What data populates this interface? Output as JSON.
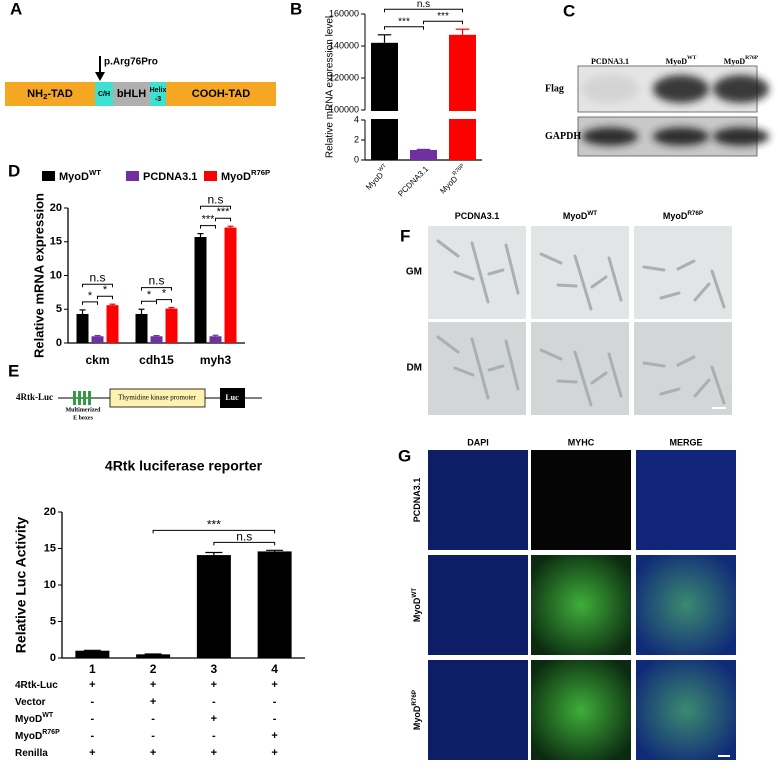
{
  "panel_labels": [
    "A",
    "B",
    "C",
    "D",
    "E",
    "F",
    "G"
  ],
  "diagram_a": {
    "mutation": "p.Arg76Pro",
    "domains": [
      {
        "text": "NH",
        "sub": "2",
        "after": "-TAD"
      },
      {
        "text": "C/H"
      },
      {
        "text": "bHLH"
      },
      {
        "text": "Helix",
        "line2": "-3"
      },
      {
        "text": "COOH-TAD"
      }
    ]
  },
  "blot_c": {
    "columns": [
      {
        "text": "PCDNA3.1"
      },
      {
        "text": "MyoD",
        "sup": "WT"
      },
      {
        "text": "MyoD",
        "sup": "R76P"
      }
    ],
    "rows": [
      "Flag",
      "GAPDH"
    ]
  },
  "construct_e": {
    "name": "4Rtk-Luc",
    "ebox_label": [
      "Multimerized",
      "E boxes"
    ],
    "promoter": "Thymidine kinase promoter",
    "reporter": "Luc"
  },
  "micrographs_f": {
    "columns": [
      {
        "text": "PCDNA3.1"
      },
      {
        "text": "MyoD",
        "sup": "WT"
      },
      {
        "text": "MyoD",
        "sup": "R76P"
      }
    ],
    "rows": [
      "GM",
      "DM"
    ]
  },
  "immuno_g": {
    "columns": [
      "DAPI",
      "MYHC",
      "MERGE"
    ],
    "rows": [
      {
        "text": "PCDNA3.1"
      },
      {
        "text": "MyoD",
        "sup": "WT"
      },
      {
        "text": "MyoD",
        "sup": "R76P"
      }
    ]
  },
  "chart_data": [
    {
      "type": "bar",
      "y_label": "Relative mRNA expression level",
      "categories": [
        {
          "text": "MyoD",
          "sup": "WT"
        },
        {
          "text": "PCDNA3.1"
        },
        {
          "text": "MyoD",
          "sup": "R76P"
        }
      ],
      "values": [
        142000,
        1,
        147000
      ],
      "errors": [
        5000,
        0.06,
        3500
      ],
      "color": [
        "#000000",
        "#7030a0",
        "#ff0000"
      ],
      "ylim": [
        0,
        160000
      ],
      "ybreak": [
        4,
        100000
      ],
      "yticks": [
        0,
        2,
        4,
        100000,
        120000,
        140000,
        160000
      ],
      "annotations": [
        {
          "text": "***",
          "from": 0,
          "to": 1
        },
        {
          "text": "***",
          "from": 1,
          "to": 2
        },
        {
          "text": "n.s",
          "from": 0,
          "to": 2
        }
      ]
    },
    {
      "type": "grouped_bar",
      "y_label": "Relative mRNA expression",
      "categories": [
        "ckm",
        "cdh15",
        "myh3"
      ],
      "series": [
        {
          "name": {
            "text": "MyoD",
            "sup": "WT"
          },
          "color": "#000000",
          "values": [
            4.3,
            4.3,
            15.7
          ],
          "errors": [
            0.6,
            0.7,
            0.5
          ]
        },
        {
          "name": {
            "text": "PCDNA3.1"
          },
          "color": "#7030a0",
          "values": [
            1,
            1,
            1
          ],
          "errors": [
            0.1,
            0.1,
            0.15
          ]
        },
        {
          "name": {
            "text": "MyoD",
            "sup": "R76P"
          },
          "color": "#ff0000",
          "values": [
            5.6,
            5.1,
            17.1
          ],
          "errors": [
            0.15,
            0.15,
            0.2
          ]
        }
      ],
      "ylim": [
        0,
        20
      ],
      "yticks": [
        0,
        5,
        10,
        15,
        20
      ],
      "annotations": [
        {
          "group": 0,
          "text": "*",
          "from": 0,
          "to": 1
        },
        {
          "group": 0,
          "text": "*",
          "from": 1,
          "to": 2
        },
        {
          "group": 0,
          "text": "n.s",
          "from": 0,
          "to": 2
        },
        {
          "group": 1,
          "text": "*",
          "from": 0,
          "to": 1
        },
        {
          "group": 1,
          "text": "*",
          "from": 1,
          "to": 2
        },
        {
          "group": 1,
          "text": "n.s",
          "from": 0,
          "to": 2
        },
        {
          "group": 2,
          "text": "***",
          "from": 0,
          "to": 1
        },
        {
          "group": 2,
          "text": "***",
          "from": 1,
          "to": 2
        },
        {
          "group": 2,
          "text": "n.s",
          "from": 0,
          "to": 2
        }
      ]
    },
    {
      "type": "bar",
      "title": "4Rtk luciferase reporter",
      "y_label": "Relative Luc Activity",
      "categories": [
        "1",
        "2",
        "3",
        "4"
      ],
      "values": [
        1.0,
        0.5,
        14.1,
        14.6
      ],
      "errors": [
        0.05,
        0.05,
        0.35,
        0.15
      ],
      "color": "#000000",
      "ylim": [
        0,
        20
      ],
      "yticks": [
        0,
        5,
        10,
        15,
        20
      ],
      "annotations": [
        {
          "text": "n.s",
          "from": 2,
          "to": 3
        },
        {
          "text": "***",
          "from": 1,
          "to": 3
        }
      ],
      "conditions_table": [
        {
          "label": {
            "text": "4Rtk-Luc"
          },
          "cells": [
            "+",
            "+",
            "+",
            "+"
          ]
        },
        {
          "label": {
            "text": "Vector"
          },
          "cells": [
            "-",
            "+",
            "-",
            "-"
          ]
        },
        {
          "label": {
            "text": "MyoD",
            "sup": "WT"
          },
          "cells": [
            "-",
            "-",
            "+",
            "-"
          ]
        },
        {
          "label": {
            "text": "MyoD",
            "sup": "R76P"
          },
          "cells": [
            "-",
            "-",
            "-",
            "+"
          ]
        },
        {
          "label": {
            "text": "Renilla"
          },
          "cells": [
            "+",
            "+",
            "+",
            "+"
          ]
        }
      ]
    }
  ]
}
